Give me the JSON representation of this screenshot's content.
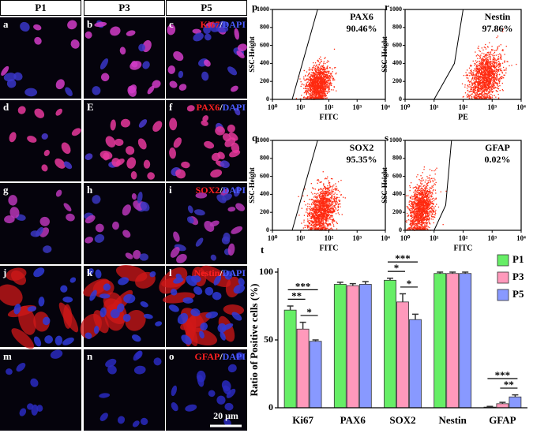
{
  "microscopy": {
    "columns": [
      "P1",
      "P3",
      "P5"
    ],
    "panels": [
      [
        "a",
        "b",
        "c"
      ],
      [
        "d",
        "E",
        "f"
      ],
      [
        "g",
        "h",
        "i"
      ],
      [
        "j",
        "k",
        "l"
      ],
      [
        "m",
        "n",
        "o"
      ]
    ],
    "stains": [
      [
        "Ki67",
        "/",
        "DAPI"
      ],
      [
        "PAX6",
        "/",
        "DAPI"
      ],
      [
        "SOX2",
        "/",
        "DAPI"
      ],
      [
        "Nestin",
        "/",
        "DAPI"
      ],
      [
        "GFAP",
        "/",
        "DAPI"
      ]
    ],
    "scale_bar": "20 μm"
  },
  "flow": {
    "ylabel": "SSC-Height",
    "xticks": [
      {
        "value": 0,
        "label": "10⁰"
      },
      {
        "value": 1,
        "label": "10¹"
      },
      {
        "value": 2,
        "label": "10²"
      },
      {
        "value": 3,
        "label": "10³"
      },
      {
        "value": 4,
        "label": "10⁴"
      }
    ],
    "yticks": [
      0,
      200,
      400,
      600,
      800,
      1000
    ],
    "plots": [
      {
        "panel": "p",
        "marker": "PAX6",
        "percent": "90.46%",
        "xlabel": "FITC"
      },
      {
        "panel": "r",
        "marker": "Nestin",
        "percent": "97.86%",
        "xlabel": "PE"
      },
      {
        "panel": "q",
        "marker": "SOX2",
        "percent": "95.35%",
        "xlabel": "FITC"
      },
      {
        "panel": "s",
        "marker": "GFAP",
        "percent": "0.02%",
        "xlabel": "FITC"
      }
    ]
  },
  "chart_data": {
    "type": "bar",
    "panel": "t",
    "ylabel": "Ratio of Positive cells (%)",
    "categories": [
      "Ki67",
      "PAX6",
      "SOX2",
      "Nestin",
      "GFAP"
    ],
    "series": [
      {
        "name": "P1",
        "color": "#66ee66",
        "values": [
          72,
          91,
          94,
          99,
          0.5
        ],
        "errors": [
          3,
          1.5,
          1.5,
          1,
          0.5
        ]
      },
      {
        "name": "P3",
        "color": "#ff99bb",
        "values": [
          58,
          90,
          78,
          99,
          3
        ],
        "errors": [
          5,
          1.5,
          6,
          1,
          1
        ]
      },
      {
        "name": "P5",
        "color": "#8899ff",
        "values": [
          49,
          91,
          65,
          99,
          8
        ],
        "errors": [
          1,
          2,
          4,
          1,
          1.5
        ]
      }
    ],
    "ylim": [
      0,
      100
    ],
    "yticks": [
      0,
      50,
      100
    ],
    "legend": "upper right",
    "annotations": [
      {
        "category": "Ki67",
        "between": [
          "P1",
          "P5"
        ],
        "label": "***"
      },
      {
        "category": "Ki67",
        "between": [
          "P1",
          "P3"
        ],
        "label": "**"
      },
      {
        "category": "Ki67",
        "between": [
          "P3",
          "P5"
        ],
        "label": "*"
      },
      {
        "category": "SOX2",
        "between": [
          "P1",
          "P5"
        ],
        "label": "***"
      },
      {
        "category": "SOX2",
        "between": [
          "P1",
          "P3"
        ],
        "label": "*"
      },
      {
        "category": "SOX2",
        "between": [
          "P3",
          "P5"
        ],
        "label": "*"
      },
      {
        "category": "GFAP",
        "between": [
          "P1",
          "P5"
        ],
        "label": "***"
      },
      {
        "category": "GFAP",
        "between": [
          "P3",
          "P5"
        ],
        "label": "**"
      }
    ]
  }
}
